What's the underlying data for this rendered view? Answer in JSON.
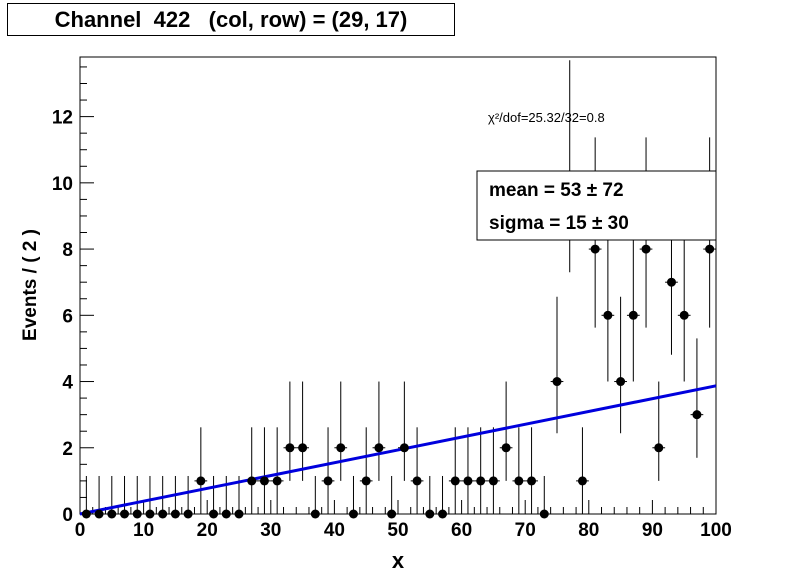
{
  "title": "Channel  422   (col, row) = (29, 17)",
  "fit_info": {
    "chi2": "χ²/dof=25.32/32=0.8",
    "mean": "mean =  53 ± 72",
    "sigma": "sigma =  15 ± 30"
  },
  "colors": {
    "fit_line": "#0000dd",
    "markers": "#000000"
  },
  "chart_data": {
    "type": "scatter",
    "xlabel": "x",
    "ylabel": "Events / ( 2 )",
    "xlim": [
      0,
      100
    ],
    "ylim": [
      0,
      13.8
    ],
    "x_ticks": [
      0,
      10,
      20,
      30,
      40,
      50,
      60,
      70,
      80,
      90,
      100
    ],
    "y_ticks": [
      0,
      2,
      4,
      6,
      8,
      10,
      12
    ],
    "grid": false,
    "series": [
      {
        "type": "points_with_errors",
        "x": [
          1,
          3,
          5,
          7,
          9,
          11,
          13,
          15,
          17,
          19,
          21,
          23,
          25,
          27,
          29,
          31,
          33,
          35,
          37,
          39,
          41,
          43,
          45,
          47,
          49,
          51,
          53,
          55,
          57,
          59,
          61,
          63,
          65,
          67,
          69,
          71,
          73,
          75,
          77,
          79,
          81,
          83,
          85,
          87,
          89,
          91,
          93,
          95,
          97,
          99
        ],
        "y": [
          0,
          0,
          0,
          0,
          0,
          0,
          0,
          0,
          0,
          1,
          0,
          0,
          0,
          1,
          1,
          1,
          2,
          2,
          0,
          1,
          2,
          0,
          1,
          2,
          0,
          2,
          1,
          0,
          0,
          1,
          1,
          1,
          1,
          2,
          1,
          1,
          0,
          4,
          10,
          1,
          8,
          6,
          4,
          6,
          8,
          2,
          7,
          6,
          3,
          8
        ],
        "x_err": 1
      },
      {
        "type": "fit_line",
        "x": [
          0,
          100
        ],
        "y": [
          0,
          3.87
        ]
      }
    ]
  }
}
